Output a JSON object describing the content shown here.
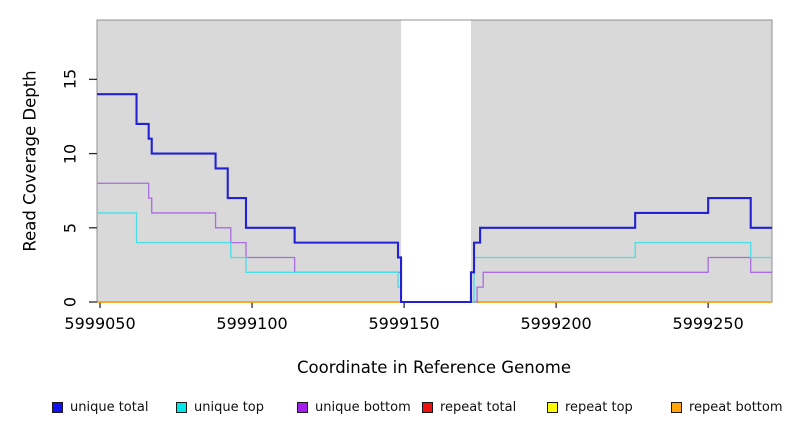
{
  "chart_data": {
    "type": "line",
    "subtype": "step-coverage",
    "title": "",
    "xlabel": "Coordinate in Reference Genome",
    "ylabel": "Read Coverage Depth",
    "xlim": [
      5999049,
      5999271
    ],
    "ylim": [
      0,
      19
    ],
    "x_ticks": [
      "5999050",
      "5999100",
      "5999150",
      "5999200",
      "5999250"
    ],
    "x_tick_values": [
      5999050,
      5999100,
      5999150,
      5999200,
      5999250
    ],
    "y_ticks": [
      "0",
      "5",
      "10",
      "15"
    ],
    "y_tick_values": [
      0,
      5,
      10,
      15
    ],
    "grid": false,
    "legend_position": "bottom",
    "panel_background": "#d9d9d9",
    "panel_border": "#909090",
    "tick_color": "#2b2b2b",
    "no_data_region": {
      "x_start": 5999149,
      "x_end": 5999172,
      "fill": "#ffffff"
    },
    "series": [
      {
        "name": "repeat total",
        "color": "#dd2222",
        "lwd": 1.2,
        "steps": [
          [
            5999049,
            0
          ]
        ]
      },
      {
        "name": "repeat top",
        "color": "#f2f20c",
        "lwd": 1.2,
        "steps": [
          [
            5999049,
            0
          ]
        ]
      },
      {
        "name": "repeat bottom",
        "color": "#ff9e08",
        "lwd": 1.6,
        "steps": [
          [
            5999049,
            0
          ]
        ]
      },
      {
        "name": "unique bottom",
        "color": "#a86be0",
        "lwd": 1.3,
        "steps": [
          [
            5999049,
            8
          ],
          [
            5999066,
            7
          ],
          [
            5999067,
            6
          ],
          [
            5999088,
            5
          ],
          [
            5999093,
            4
          ],
          [
            5999098,
            3
          ],
          [
            5999114,
            2
          ],
          [
            5999149,
            0
          ],
          [
            5999174,
            1
          ],
          [
            5999176,
            2
          ],
          [
            5999250,
            3
          ],
          [
            5999264,
            2
          ]
        ]
      },
      {
        "name": "unique top",
        "color": "#48dfe6",
        "lwd": 1.3,
        "steps": [
          [
            5999049,
            6
          ],
          [
            5999062,
            4
          ],
          [
            5999093,
            3
          ],
          [
            5999098,
            2
          ],
          [
            5999148,
            1
          ],
          [
            5999149,
            0
          ],
          [
            5999173,
            3
          ],
          [
            5999226,
            4
          ],
          [
            5999264,
            3
          ]
        ]
      },
      {
        "name": "unique total",
        "color": "#2222d2",
        "lwd": 2.1,
        "steps": [
          [
            5999049,
            14
          ],
          [
            5999062,
            12
          ],
          [
            5999066,
            11
          ],
          [
            5999067,
            10
          ],
          [
            5999088,
            9
          ],
          [
            5999092,
            7
          ],
          [
            5999098,
            5
          ],
          [
            5999114,
            4
          ],
          [
            5999148,
            3
          ],
          [
            5999149,
            0
          ],
          [
            5999172,
            2
          ],
          [
            5999173,
            4
          ],
          [
            5999175,
            5
          ],
          [
            5999226,
            6
          ],
          [
            5999250,
            7
          ],
          [
            5999264,
            5
          ]
        ]
      }
    ]
  },
  "legend": {
    "items": [
      {
        "label": "unique total",
        "fill": "#1111ee"
      },
      {
        "label": "unique top",
        "fill": "#00e8e8"
      },
      {
        "label": "unique bottom",
        "fill": "#a21fe8"
      },
      {
        "label": "repeat total",
        "fill": "#ee1111"
      },
      {
        "label": "repeat top",
        "fill": "#fdfd00"
      },
      {
        "label": "repeat bottom",
        "fill": "#ffa40a"
      }
    ]
  }
}
